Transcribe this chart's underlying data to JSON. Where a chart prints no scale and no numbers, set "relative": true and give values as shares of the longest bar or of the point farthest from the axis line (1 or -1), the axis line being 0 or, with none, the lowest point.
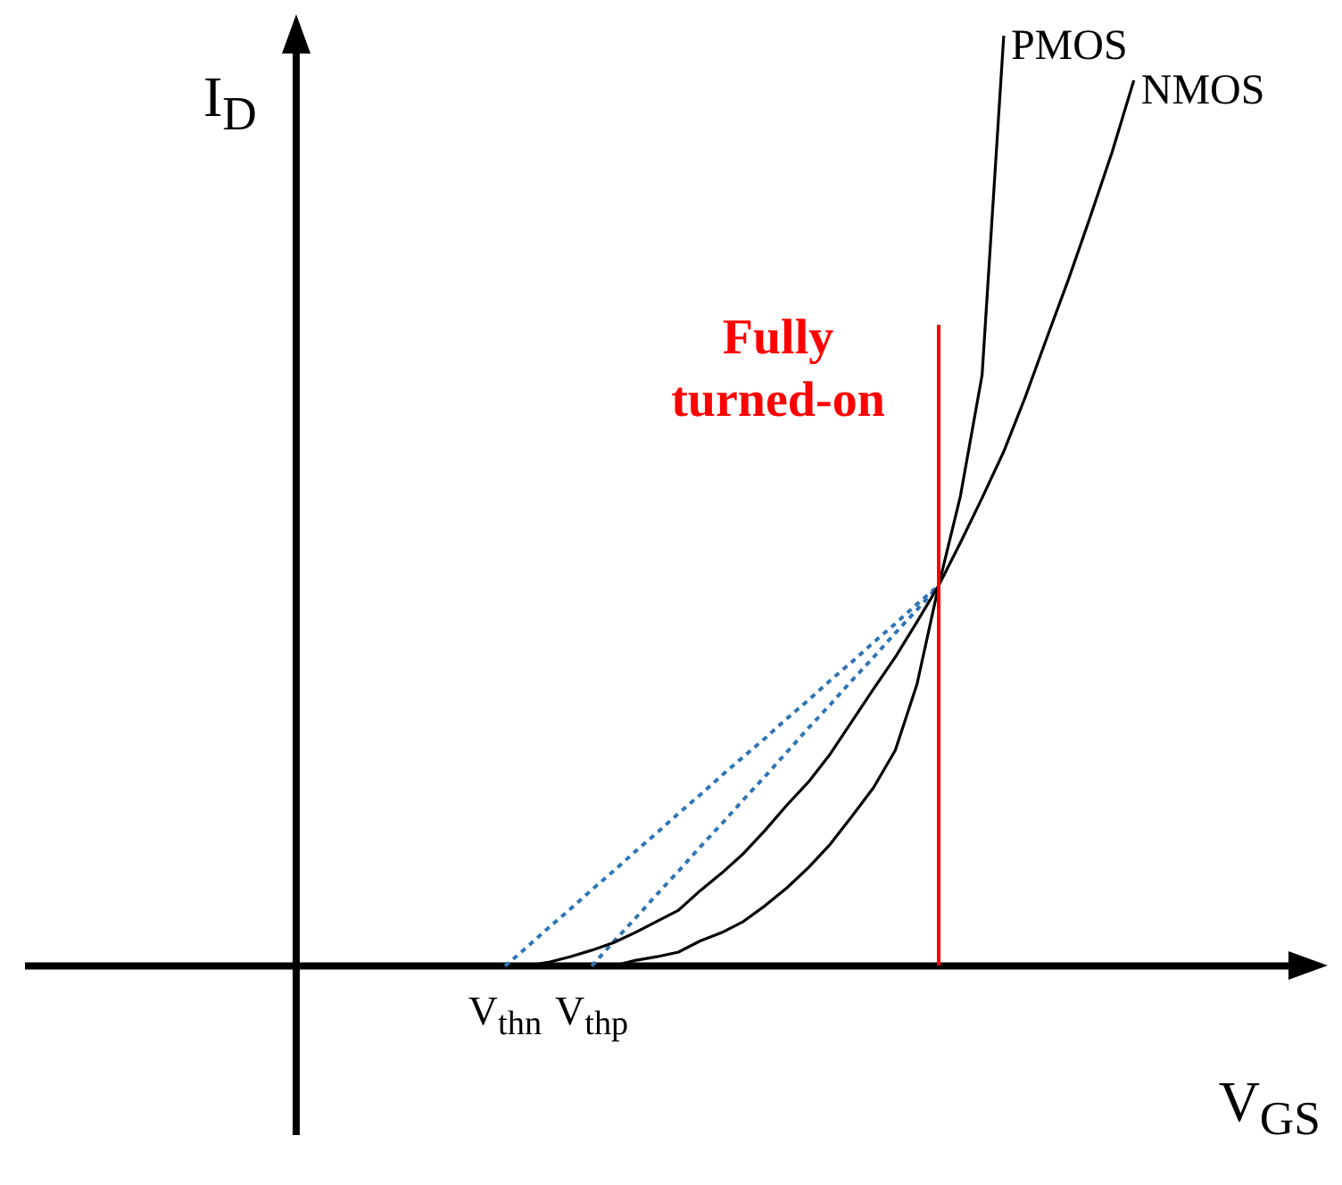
{
  "chart_data": {
    "type": "line",
    "relative": true,
    "xlabel": "V$_{GS}$",
    "ylabel": "I$_{D}$",
    "categories": [
      "V$_{thn}$",
      null,
      null,
      null,
      "V$_{thp}$",
      null,
      null,
      null,
      null,
      null,
      null,
      null,
      null,
      null,
      null,
      null,
      null,
      null,
      null,
      null,
      null,
      null,
      null,
      null,
      null,
      null,
      null,
      null,
      null,
      null
    ],
    "legend": false,
    "marker": "none",
    "series": [
      {
        "name": "PMOS",
        "color": "#000000",
        "values": [
          null,
          null,
          null,
          null,
          null,
          0,
          0.006,
          0.01,
          0.015,
          0.027,
          0.036,
          0.048,
          0.065,
          0.084,
          0.106,
          0.131,
          0.161,
          0.192,
          0.232,
          0.303,
          0.409,
          0.505,
          0.635,
          1.0,
          null,
          null,
          null,
          null,
          null,
          null
        ]
      },
      {
        "name": "NMOS",
        "color": "#000000",
        "values": [
          null,
          0,
          0.004,
          0.01,
          0.017,
          0.025,
          0.036,
          0.048,
          0.06,
          0.081,
          0.1,
          0.121,
          0.146,
          0.173,
          0.198,
          0.228,
          0.263,
          0.298,
          0.332,
          0.37,
          0.409,
          0.455,
          0.503,
          0.553,
          0.612,
          0.676,
          0.739,
          0.806,
          0.875,
          0.952
        ]
      },
      {
        "type": "line",
        "line_style": "dotted",
        "color": "#2e75b6",
        "values": [
          0,
          0.02,
          0.041,
          0.061,
          0.082,
          0.102,
          0.123,
          0.143,
          0.164,
          0.184,
          0.205,
          0.225,
          0.245,
          0.266,
          0.286,
          0.307,
          0.327,
          0.348,
          0.368,
          0.389,
          0.409,
          null,
          null,
          null,
          null,
          null,
          null,
          null,
          null,
          null
        ]
      },
      {
        "type": "line",
        "line_style": "dotted",
        "color": "#2e75b6",
        "values": [
          null,
          null,
          null,
          null,
          0,
          0.026,
          0.051,
          0.077,
          0.102,
          0.128,
          0.153,
          0.179,
          0.204,
          0.23,
          0.256,
          0.281,
          0.307,
          0.332,
          0.358,
          0.383,
          0.409,
          null,
          null,
          null,
          null,
          null,
          null,
          null,
          null,
          null
        ]
      }
    ],
    "annotations": [
      "Fully turned-on"
    ]
  }
}
